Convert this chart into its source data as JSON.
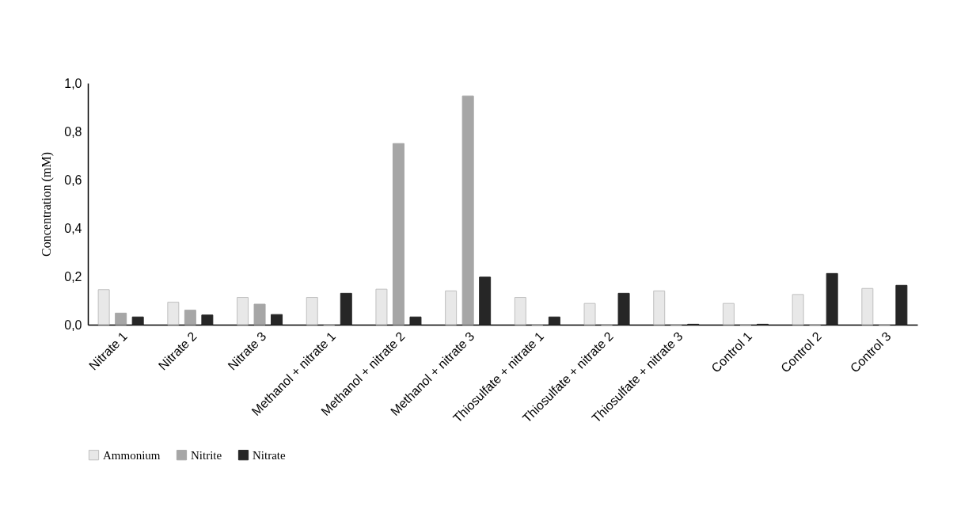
{
  "chart_data": {
    "type": "bar",
    "ylabel": "Concentration (mM)",
    "categories": [
      "Nitrate 1",
      "Nitrate 2",
      "Nitrate 3",
      "Methanol + nitrate 1",
      "Methanol + nitrate 2",
      "Methanol + nitrate 3",
      "Thiosulfate + nitrate 1",
      "Thiosulfate + nitrate 2",
      "Thiosulfate + nitrate 3",
      "Control 1",
      "Control 2",
      "Control 3"
    ],
    "series": [
      {
        "name": "Ammonium",
        "color": "#e8e8e8",
        "values": [
          0.145,
          0.093,
          0.113,
          0.113,
          0.147,
          0.14,
          0.113,
          0.088,
          0.14,
          0.088,
          0.125,
          0.15
        ]
      },
      {
        "name": "Nitrite",
        "color": "#a6a6a6",
        "values": [
          0.048,
          0.06,
          0.085,
          0,
          0.75,
          0.947,
          0,
          0,
          0,
          0,
          0,
          0
        ]
      },
      {
        "name": "Nitrate",
        "color": "#262626",
        "values": [
          0.032,
          0.04,
          0.042,
          0.13,
          0.032,
          0.197,
          0.032,
          0.13,
          0.002,
          0.002,
          0.212,
          0.163
        ]
      }
    ],
    "ylim": [
      0,
      1
    ],
    "yticks": [
      {
        "value": 0,
        "label": "0,0"
      },
      {
        "value": 0.2,
        "label": "0,2"
      },
      {
        "value": 0.4,
        "label": "0,4"
      },
      {
        "value": 0.6,
        "label": "0,6"
      },
      {
        "value": 0.8,
        "label": "0,8"
      },
      {
        "value": 1,
        "label": "1,0"
      }
    ],
    "grid": false,
    "legend": "bottom"
  }
}
